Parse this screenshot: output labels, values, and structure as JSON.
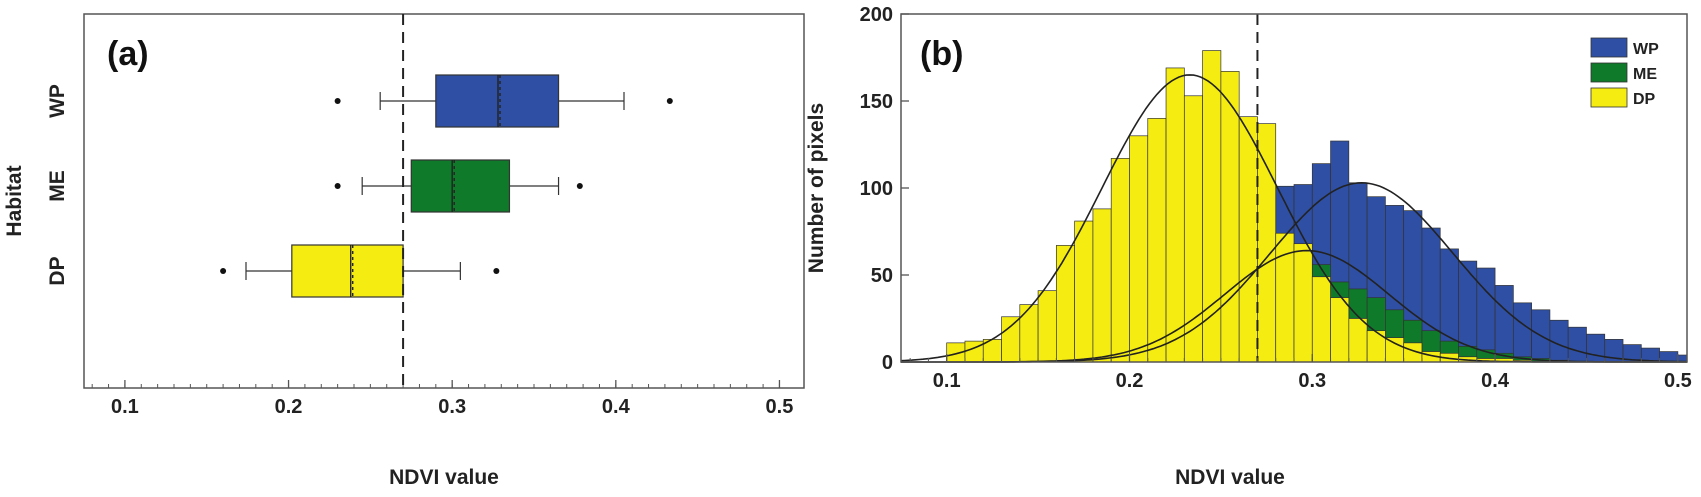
{
  "colors": {
    "WP": "#2e4fa3",
    "ME": "#0f7a2a",
    "DP": "#f5ec12"
  },
  "chart_data": [
    {
      "type": "box",
      "panel_label": "(a)",
      "xlabel": "NDVI value",
      "ylabel": "Habitat",
      "xlim": [
        0.075,
        0.515
      ],
      "xticks": [
        "0.1",
        "0.2",
        "0.3",
        "0.4",
        "0.5"
      ],
      "xtick_values": [
        0.1,
        0.2,
        0.3,
        0.4,
        0.5
      ],
      "reference_line": 0.27,
      "grid": false,
      "legend": "none",
      "categories": [
        "WP",
        "ME",
        "DP"
      ],
      "boxes": [
        {
          "name": "WP",
          "whisker_low": 0.256,
          "q1": 0.29,
          "median": 0.328,
          "q3": 0.365,
          "whisker_high": 0.405,
          "outliers": [
            0.23,
            0.433
          ]
        },
        {
          "name": "ME",
          "whisker_low": 0.245,
          "q1": 0.275,
          "median": 0.3,
          "q3": 0.335,
          "whisker_high": 0.365,
          "outliers": [
            0.23,
            0.378
          ]
        },
        {
          "name": "DP",
          "whisker_low": 0.174,
          "q1": 0.202,
          "median": 0.238,
          "q3": 0.27,
          "whisker_high": 0.305,
          "outliers": [
            0.16,
            0.327
          ]
        }
      ]
    },
    {
      "type": "histogram",
      "panel_label": "(b)",
      "xlabel": "NDVI value",
      "ylabel": "Number of pixels",
      "xlim": [
        0.075,
        0.505
      ],
      "ylim": [
        0,
        200
      ],
      "xticks": [
        "0.1",
        "0.2",
        "0.3",
        "0.4",
        "0.5"
      ],
      "xtick_values": [
        0.1,
        0.2,
        0.3,
        0.4,
        0.5
      ],
      "yticks": [
        "0",
        "50",
        "100",
        "150",
        "200"
      ],
      "ytick_values": [
        0,
        50,
        100,
        150,
        200
      ],
      "reference_line": 0.27,
      "grid": false,
      "legend": "top-right",
      "bin_start": 0.1,
      "bin_width": 0.01,
      "series": [
        {
          "name": "WP",
          "values": [
            0,
            0,
            0,
            0,
            0,
            0,
            2,
            3,
            5,
            8,
            13,
            21,
            30,
            43,
            55,
            68,
            82,
            94,
            101,
            102,
            114,
            127,
            103,
            95,
            90,
            87,
            77,
            65,
            58,
            54,
            44,
            34,
            30,
            24,
            20,
            16,
            13,
            10,
            8,
            6,
            4
          ]
        },
        {
          "name": "ME",
          "values": [
            0,
            0,
            0,
            0,
            0,
            1,
            2,
            3,
            6,
            9,
            14,
            21,
            30,
            38,
            47,
            58,
            68,
            66,
            60,
            57,
            56,
            46,
            42,
            37,
            30,
            24,
            18,
            12,
            9,
            7,
            5,
            3,
            2,
            1,
            0,
            0,
            0,
            0,
            0,
            0,
            0
          ]
        },
        {
          "name": "DP",
          "values": [
            11,
            12,
            13,
            26,
            33,
            41,
            67,
            81,
            88,
            117,
            130,
            140,
            169,
            153,
            179,
            167,
            141,
            137,
            74,
            68,
            49,
            37,
            25,
            18,
            14,
            11,
            6,
            5,
            3,
            2,
            2,
            1,
            0,
            0,
            0,
            0,
            0,
            0,
            0,
            0,
            0
          ]
        }
      ],
      "fitted_curves": [
        {
          "name": "WP",
          "mean": 0.327,
          "sd": 0.05,
          "peak": 103
        },
        {
          "name": "ME",
          "mean": 0.297,
          "sd": 0.045,
          "peak": 64
        },
        {
          "name": "DP",
          "mean": 0.233,
          "sd": 0.048,
          "peak": 165
        }
      ]
    }
  ]
}
